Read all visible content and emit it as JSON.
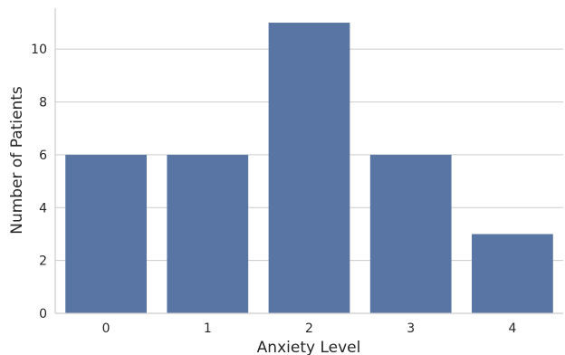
{
  "chart_data": {
    "type": "bar",
    "categories": [
      "0",
      "1",
      "2",
      "3",
      "4"
    ],
    "values": [
      6,
      6,
      11,
      6,
      3
    ],
    "title": "",
    "xlabel": "Anxiety Level",
    "ylabel": "Number of Patients",
    "ylim": [
      0,
      11.55
    ],
    "yticks": [
      0,
      2,
      4,
      6,
      8,
      10
    ],
    "grid": "horizontal",
    "bar_color": "#5975a4",
    "grid_color": "#cccccc",
    "axis_color": "#cccccc",
    "text_color": "#262626"
  }
}
